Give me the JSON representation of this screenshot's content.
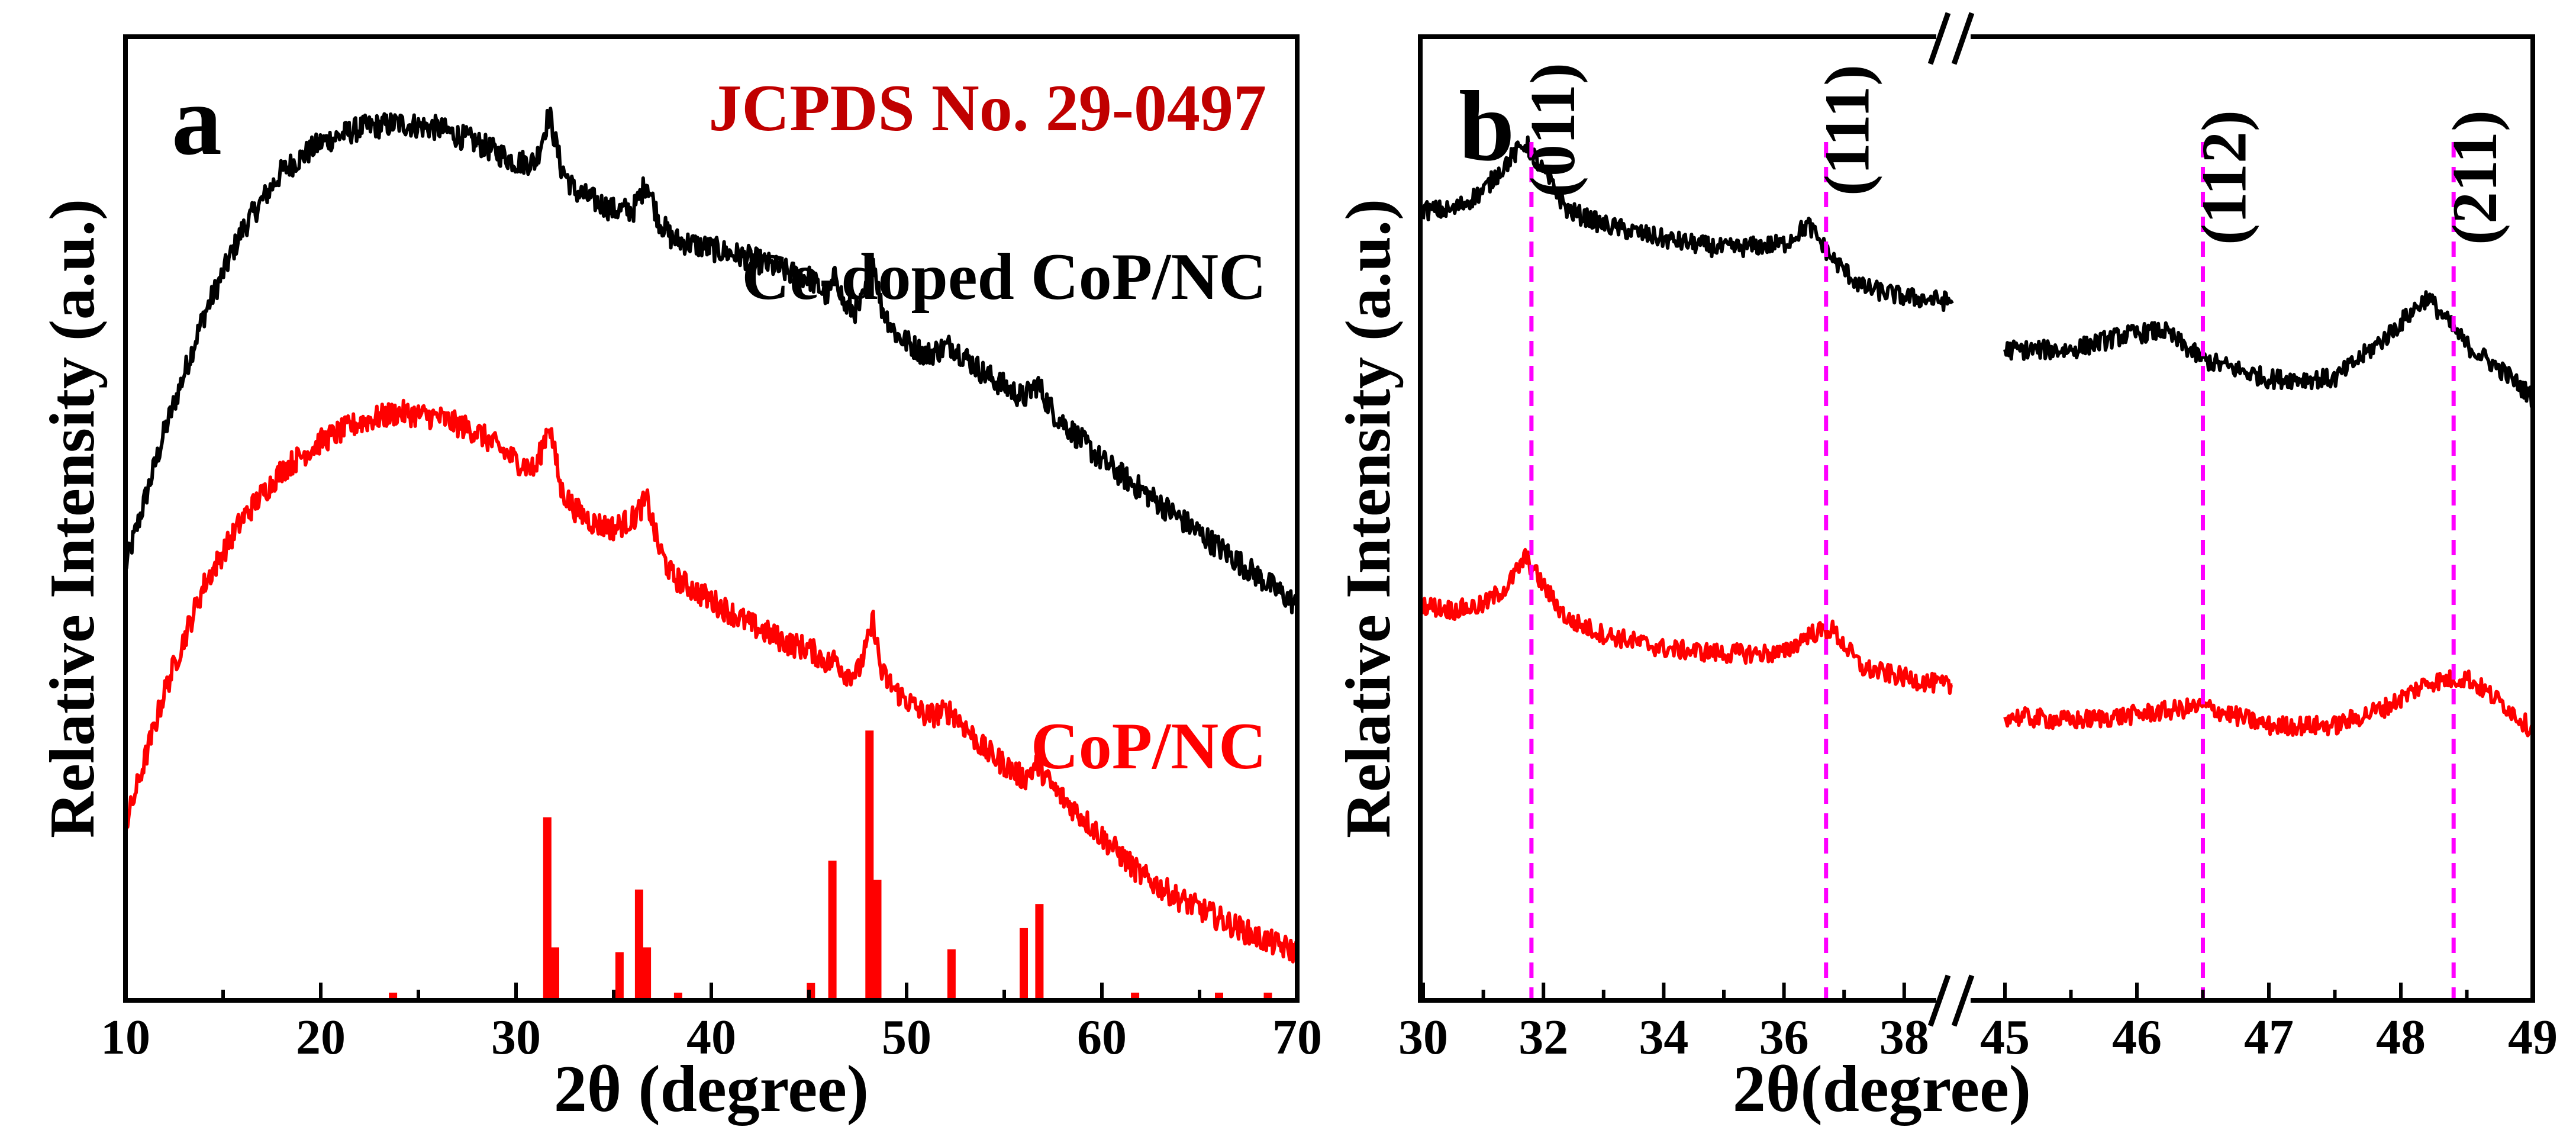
{
  "chart_data": [
    {
      "panel": "a",
      "type": "line",
      "title": "",
      "reference_label": "JCPDS No. 29-0497",
      "xlabel": "2θ (degree)",
      "ylabel": "Relative Intensity (a.u.)",
      "xlim": [
        10,
        70
      ],
      "ylim": [
        0,
        100
      ],
      "xticks": [
        "10",
        "20",
        "30",
        "40",
        "50",
        "60",
        "70"
      ],
      "series": [
        {
          "name": "Ce-doped CoP/NC",
          "color": "#000000",
          "x": [
            10,
            12,
            14,
            16,
            18,
            20,
            22,
            24,
            26,
            28,
            30,
            31,
            31.7,
            32.3,
            33,
            34,
            35,
            36,
            36.7,
            37.3,
            38,
            40,
            42,
            44,
            45,
            46,
            46.4,
            46.8,
            47.5,
            48,
            48.3,
            48.7,
            49.5,
            51,
            52.3,
            54,
            56,
            56.7,
            57.5,
            60,
            62,
            64,
            66,
            68,
            70
          ],
          "y": [
            45,
            59,
            71,
            80,
            86,
            89,
            90.5,
            91,
            90.5,
            89,
            87,
            87,
            92,
            86.5,
            84,
            83,
            82,
            82,
            85,
            81,
            79,
            78,
            77,
            75.5,
            75,
            73,
            75.5,
            72,
            71.5,
            74,
            77,
            72,
            69,
            67,
            68,
            65,
            62.5,
            64,
            61,
            56,
            53,
            50,
            47,
            44,
            41
          ]
        },
        {
          "name": "CoP/NC",
          "color": "#ff0000",
          "x": [
            10,
            12,
            14,
            16,
            18,
            20,
            22,
            24,
            26,
            28,
            30,
            31,
            31.7,
            32.3,
            33,
            34,
            35,
            36,
            36.7,
            37.3,
            38,
            40,
            42,
            44,
            45,
            46,
            46.4,
            46.8,
            47.5,
            48,
            48.3,
            48.7,
            49.5,
            51,
            52.3,
            54,
            56,
            56.7,
            57.5,
            60,
            62,
            64,
            66,
            68,
            70
          ],
          "y": [
            18,
            32,
            43,
            50,
            55,
            58,
            60,
            61,
            60.5,
            59,
            56,
            55,
            60,
            53,
            51,
            49.5,
            49,
            50,
            52,
            47,
            44,
            41.5,
            39,
            37,
            36.5,
            35,
            35.5,
            34,
            34,
            37,
            39.5,
            34,
            32,
            29.5,
            30,
            26,
            23,
            24.5,
            22,
            17,
            13,
            10.5,
            8.5,
            6.5,
            5
          ]
        }
      ],
      "reference_peaks": {
        "name": "JCPDS No. 29-0497",
        "color": "#ff0000",
        "x": [
          23.7,
          31.6,
          32.0,
          35.3,
          36.3,
          36.7,
          38.3,
          45.1,
          46.2,
          48.1,
          48.5,
          52.3,
          56.0,
          56.8,
          61.7,
          66.0,
          68.5
        ],
        "y": [
          0.8,
          19,
          5.5,
          5,
          11.5,
          5.5,
          0.8,
          1.8,
          14.5,
          28,
          12.5,
          5.3,
          7.5,
          10,
          0.8,
          0.8,
          0.8
        ]
      },
      "grid": false,
      "legend": "labels next to curves"
    },
    {
      "panel": "b",
      "type": "line",
      "title": "",
      "xlabel": "2θ(degree)",
      "ylabel": "Relative Intensity (a.u.)",
      "x_axis_break": true,
      "segments": [
        {
          "xlim": [
            30,
            38.8
          ],
          "xticks": [
            "30",
            "32",
            "34",
            "36",
            "38"
          ]
        },
        {
          "xlim": [
            45,
            49
          ],
          "xticks": [
            "45",
            "46",
            "47",
            "48",
            "49"
          ]
        }
      ],
      "ylim": [
        0,
        100
      ],
      "series": [
        {
          "name": "Ce-doped CoP/NC",
          "color": "#000000",
          "x": [
            30,
            30.5,
            31,
            31.4,
            31.7,
            32.0,
            32.4,
            33,
            34,
            35,
            36,
            36.4,
            36.8,
            37.3,
            38,
            38.8,
            45,
            45.5,
            45.9,
            46.2,
            46.5,
            47,
            47.5,
            47.9,
            48.2,
            48.5,
            48.8,
            49
          ],
          "y": [
            82,
            82,
            84,
            87,
            89,
            86,
            82,
            80.5,
            79,
            78,
            78.5,
            80.5,
            77,
            74,
            73,
            72.5,
            67.5,
            67.5,
            69,
            69.5,
            66.5,
            64.5,
            64.5,
            69,
            73,
            68,
            65,
            62.5
          ]
        },
        {
          "name": "CoP/NC",
          "color": "#ff0000",
          "x": [
            30,
            30.5,
            31,
            31.4,
            31.7,
            32.0,
            32.4,
            33,
            34,
            35,
            36,
            36.4,
            36.8,
            37.3,
            38,
            38.8,
            45,
            45.5,
            45.9,
            46.2,
            46.5,
            47,
            47.5,
            47.9,
            48.2,
            48.5,
            48.8,
            49
          ],
          "y": [
            41,
            40.5,
            41,
            43,
            46,
            43,
            39.5,
            38,
            36.5,
            36,
            36,
            38,
            38.5,
            34.5,
            33.5,
            32.5,
            29.5,
            29,
            29.5,
            30,
            30.5,
            28.5,
            28.5,
            30.5,
            33,
            33.5,
            30.5,
            28
          ]
        }
      ],
      "reference_lines": [
        {
          "x": 31.8,
          "label": "(011)"
        },
        {
          "x": 36.7,
          "label": "(111)"
        },
        {
          "x": 46.5,
          "label": "(112)"
        },
        {
          "x": 48.4,
          "label": "(211)"
        }
      ],
      "reference_line_color": "#ff00ff",
      "grid": false
    }
  ]
}
